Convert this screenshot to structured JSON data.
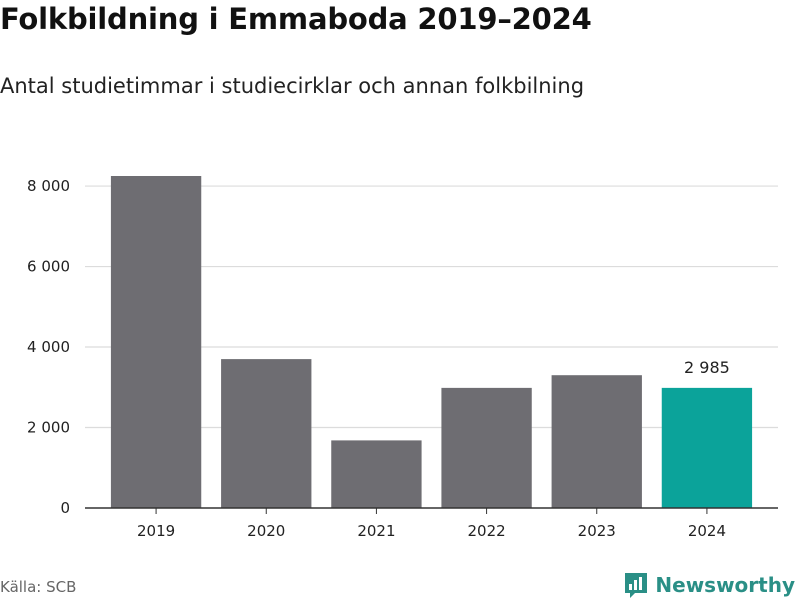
{
  "header": {
    "title": "Folkbildning i Emmaboda 2019–2024",
    "subtitle": "Antal studietimmar i studiecirklar och annan folkbilning"
  },
  "footer": {
    "source": "Källa: SCB",
    "brand": "Newsworthy"
  },
  "colors": {
    "bar": "#6e6d72",
    "highlight": "#0ba39a",
    "grid": "#dcdcdc",
    "axis": "#333333",
    "brand": "#2a8f86"
  },
  "chart_data": {
    "type": "bar",
    "title": "Folkbildning i Emmaboda 2019–2024",
    "subtitle": "Antal studietimmar i studiecirklar och annan folkbilning",
    "categories": [
      "2019",
      "2020",
      "2021",
      "2022",
      "2023",
      "2024"
    ],
    "values": [
      8250,
      3700,
      1680,
      2985,
      3300,
      2985
    ],
    "highlight_index": 5,
    "data_labels": [
      {
        "index": 5,
        "text": "2 985"
      }
    ],
    "yticks": [
      0,
      2000,
      4000,
      6000,
      8000
    ],
    "ytick_labels": [
      "0",
      "2 000",
      "4 000",
      "6 000",
      "8 000"
    ],
    "ylim": [
      0,
      8250
    ],
    "xlabel": "",
    "ylabel": "",
    "grid": true
  }
}
